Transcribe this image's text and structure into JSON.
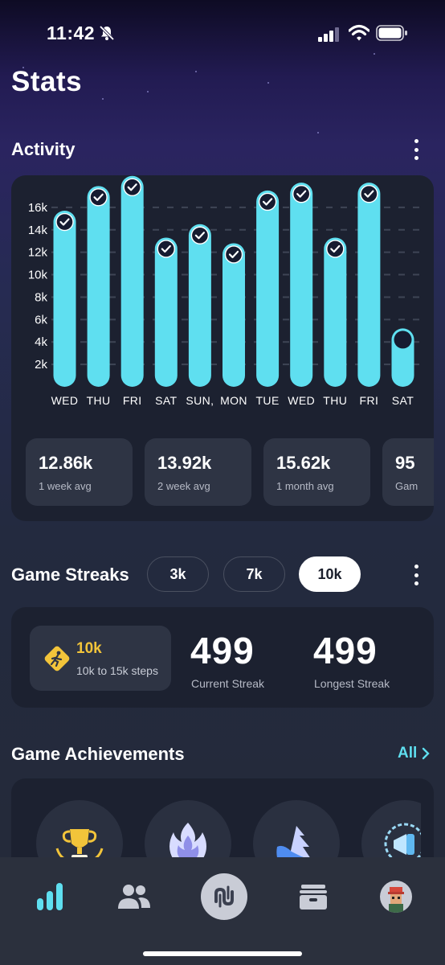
{
  "status_bar": {
    "time": "11:42"
  },
  "page_title": "Stats",
  "activity": {
    "title": "Activity",
    "chart_data": {
      "type": "bar",
      "categories": [
        "WED",
        "THU",
        "FRI",
        "SAT",
        "SUN,",
        "MON",
        "TUE",
        "WED",
        "THU",
        "FRI",
        "SAT"
      ],
      "values": [
        14700,
        16900,
        17800,
        12300,
        13500,
        11800,
        16500,
        17200,
        12300,
        17200,
        4200
      ],
      "goal_met": [
        true,
        true,
        true,
        true,
        true,
        true,
        true,
        true,
        true,
        true,
        false
      ],
      "y_ticks": [
        "2k",
        "4k",
        "6k",
        "8k",
        "10k",
        "12k",
        "14k",
        "16k"
      ],
      "ylim": [
        0,
        18000
      ],
      "bar_color": "#5fdff0",
      "grid": true,
      "title": "",
      "xlabel": "",
      "ylabel": ""
    },
    "averages": [
      {
        "value": "12.86k",
        "label": "1 week avg"
      },
      {
        "value": "13.92k",
        "label": "2 week avg"
      },
      {
        "value": "15.62k",
        "label": "1 month avg"
      },
      {
        "value": "95",
        "label": "Gam"
      }
    ]
  },
  "game_streaks": {
    "title": "Game Streaks",
    "filters": [
      "3k",
      "7k",
      "10k"
    ],
    "selected_filter": "10k",
    "badge": {
      "title": "10k",
      "subtitle": "10k to 15k steps",
      "icon": "running-shoe-icon",
      "color": "#f2c43a"
    },
    "current": {
      "value": "499",
      "label": "Current Streak"
    },
    "longest": {
      "value": "499",
      "label": "Longest Streak"
    }
  },
  "achievements": {
    "title": "Game Achievements",
    "all_label": "All",
    "accent": "#5fdff0"
  },
  "tabbar": {
    "items": [
      "stats-icon",
      "friends-icon",
      "game-icon",
      "wallet-icon",
      "avatar"
    ],
    "active_color": "#5fdff0"
  }
}
